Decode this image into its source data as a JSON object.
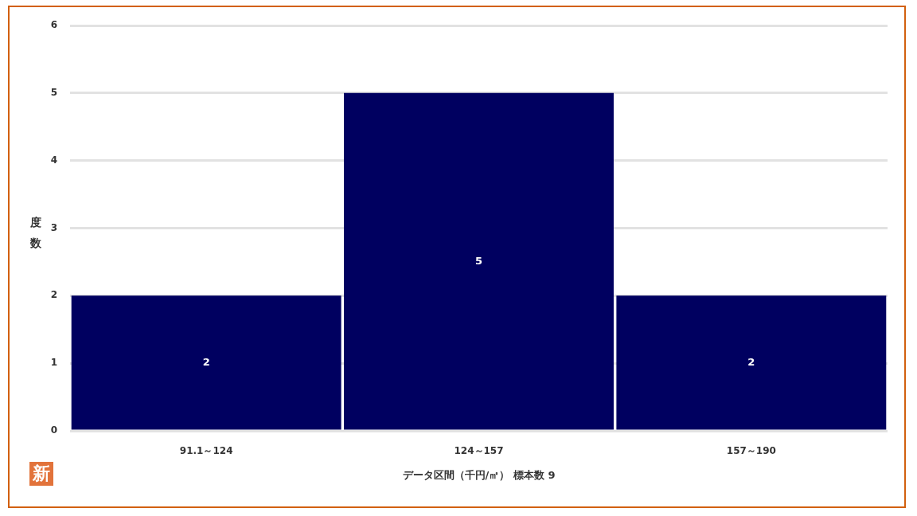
{
  "chart_data": {
    "type": "bar",
    "categories": [
      "91.1～124",
      "124～157",
      "157～190"
    ],
    "values": [
      2,
      5,
      2
    ],
    "color": "#000060",
    "ylim": [
      0,
      6
    ],
    "yticks": [
      0,
      1,
      2,
      3,
      4,
      5,
      6
    ],
    "grid": "y",
    "data_labels": true,
    "xlabel": "データ区間（千円/㎡） 標本数 9",
    "ylabel": "度数",
    "annotations": [
      "新"
    ]
  }
}
